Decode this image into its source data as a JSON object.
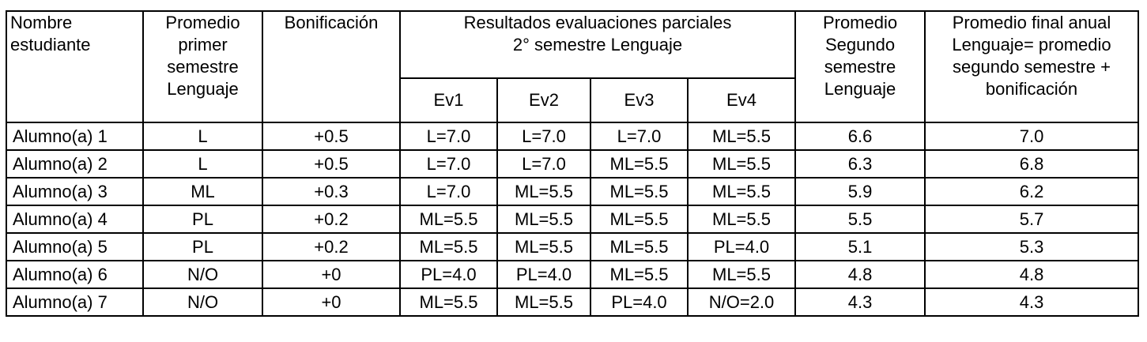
{
  "headers": {
    "name": [
      "Nombre",
      "estudiante"
    ],
    "first_semester": [
      "Promedio",
      "primer",
      "semestre",
      "Lenguaje"
    ],
    "bonus": [
      "Bonificación"
    ],
    "partials_group": [
      "Resultados evaluaciones parciales",
      "2° semestre Lenguaje"
    ],
    "evaluations": [
      "Ev1",
      "Ev2",
      "Ev3",
      "Ev4"
    ],
    "second_semester": [
      "Promedio",
      "Segundo",
      "semestre",
      "Lenguaje"
    ],
    "final": [
      "Promedio final anual",
      "Lenguaje= promedio",
      "segundo semestre +",
      "bonificación"
    ]
  },
  "rows": [
    {
      "name": "Alumno(a) 1",
      "first": "L",
      "bonus": "+0.5",
      "ev": [
        "L=7.0",
        "L=7.0",
        "L=7.0",
        "ML=5.5"
      ],
      "second": "6.6",
      "final": "7.0"
    },
    {
      "name": "Alumno(a) 2",
      "first": "L",
      "bonus": "+0.5",
      "ev": [
        "L=7.0",
        "L=7.0",
        "ML=5.5",
        "ML=5.5"
      ],
      "second": "6.3",
      "final": "6.8"
    },
    {
      "name": "Alumno(a) 3",
      "first": "ML",
      "bonus": "+0.3",
      "ev": [
        "L=7.0",
        "ML=5.5",
        "ML=5.5",
        "ML=5.5"
      ],
      "second": "5.9",
      "final": "6.2"
    },
    {
      "name": "Alumno(a) 4",
      "first": "PL",
      "bonus": "+0.2",
      "ev": [
        "ML=5.5",
        "ML=5.5",
        "ML=5.5",
        "ML=5.5"
      ],
      "second": "5.5",
      "final": "5.7"
    },
    {
      "name": "Alumno(a) 5",
      "first": "PL",
      "bonus": "+0.2",
      "ev": [
        "ML=5.5",
        "ML=5.5",
        "ML=5.5",
        "PL=4.0"
      ],
      "second": "5.1",
      "final": "5.3"
    },
    {
      "name": "Alumno(a) 6",
      "first": "N/O",
      "bonus": "+0",
      "ev": [
        "PL=4.0",
        "PL=4.0",
        "ML=5.5",
        "ML=5.5"
      ],
      "second": "4.8",
      "final": "4.8"
    },
    {
      "name": "Alumno(a) 7",
      "first": "N/O",
      "bonus": "+0",
      "ev": [
        "ML=5.5",
        "ML=5.5",
        "PL=4.0",
        "N/O=2.0"
      ],
      "second": "4.3",
      "final": "4.3"
    }
  ]
}
